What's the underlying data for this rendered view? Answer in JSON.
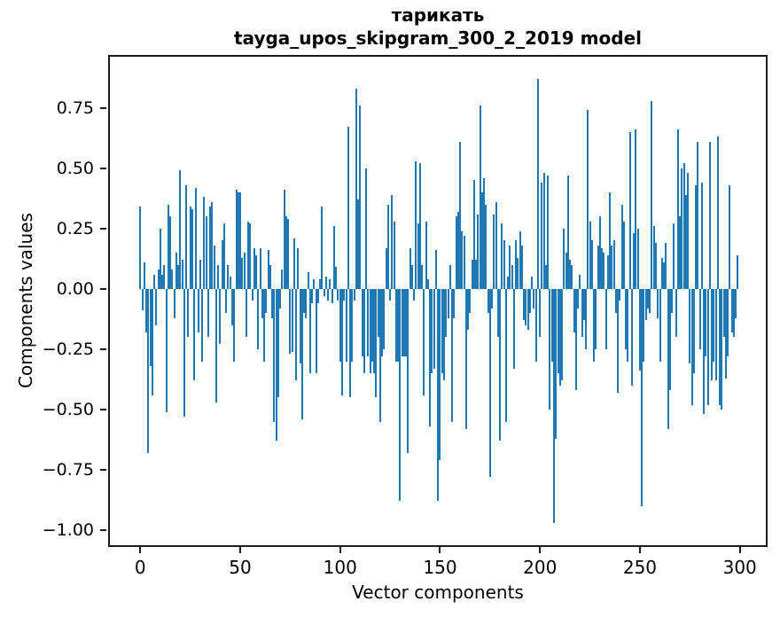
{
  "figure": {
    "title_line1": "тарикать",
    "title_line2": "tayga_upos_skipgram_300_2_2019 model"
  },
  "chart_data": {
    "type": "bar",
    "title": "тарикать",
    "subtitle": "tayga_upos_skipgram_300_2_2019 model",
    "xlabel": "Vector components",
    "ylabel": "Components values",
    "legend": "none",
    "grid": false,
    "bar_color": "#1f77b4",
    "spine_color": "#1c1c1c",
    "n_components": 300,
    "x_start": 0,
    "xlim": [
      -15.2,
      313.0
    ],
    "ylim": [
      -1.062,
      0.962
    ],
    "xticks": [
      {
        "label": "0",
        "value": 0
      },
      {
        "label": "50",
        "value": 50
      },
      {
        "label": "100",
        "value": 100
      },
      {
        "label": "150",
        "value": 150
      },
      {
        "label": "200",
        "value": 200
      },
      {
        "label": "250",
        "value": 250
      },
      {
        "label": "300",
        "value": 300
      }
    ],
    "yticks": [
      {
        "label": "0.75",
        "value": 0.75
      },
      {
        "label": "0.50",
        "value": 0.5
      },
      {
        "label": "0.25",
        "value": 0.25
      },
      {
        "label": "0.00",
        "value": 0.0
      },
      {
        "label": "−0.25",
        "value": -0.25
      },
      {
        "label": "−0.50",
        "value": -0.5
      },
      {
        "label": "−0.75",
        "value": -0.75
      },
      {
        "label": "−1.00",
        "value": -1.0
      }
    ],
    "values": [
      0.34,
      -0.09,
      0.11,
      -0.18,
      -0.68,
      -0.32,
      -0.44,
      0.06,
      -0.15,
      0.08,
      0.25,
      0.06,
      0.1,
      -0.51,
      0.35,
      0.3,
      0.08,
      -0.12,
      0.15,
      0.1,
      0.49,
      0.12,
      -0.53,
      0.43,
      -0.2,
      0.34,
      0.33,
      -0.38,
      0.42,
      -0.18,
      0.12,
      -0.3,
      0.38,
      0.3,
      -0.2,
      0.34,
      0.36,
      0.18,
      -0.47,
      0.1,
      -0.23,
      0.2,
      0.27,
      -0.1,
      0.1,
      0.05,
      -0.15,
      -0.3,
      0.41,
      0.4,
      0.4,
      0.13,
      0.15,
      -0.2,
      0.28,
      0.27,
      -0.05,
      0.17,
      0.14,
      -0.25,
      0.17,
      -0.12,
      -0.3,
      -0.1,
      0.16,
      0.1,
      -0.12,
      -0.55,
      -0.63,
      -0.45,
      -0.08,
      0.08,
      0.41,
      0.3,
      0.29,
      -0.27,
      -0.26,
      0.21,
      -0.38,
      0.17,
      -0.31,
      -0.54,
      -0.1,
      -0.12,
      0.07,
      -0.35,
      -0.06,
      0.04,
      -0.35,
      -0.06,
      0.04,
      0.34,
      -0.03,
      0.05,
      -0.05,
      0.04,
      -0.06,
      0.26,
      0.09,
      -0.05,
      -0.3,
      -0.44,
      -0.05,
      -0.3,
      0.67,
      -0.45,
      -0.3,
      -0.05,
      0.83,
      0.37,
      0.76,
      -0.28,
      -0.35,
      0.5,
      -0.28,
      -0.35,
      -0.3,
      -0.35,
      -0.45,
      -0.2,
      -0.55,
      -0.28,
      -0.25,
      0.17,
      0.35,
      -0.05,
      0.39,
      0.28,
      -0.3,
      -0.3,
      -0.88,
      -0.28,
      -0.28,
      -0.28,
      -0.68,
      0.17,
      0.1,
      -0.05,
      0.53,
      0.27,
      0.52,
      0.1,
      -0.44,
      0.28,
      0.04,
      -0.57,
      -0.35,
      -0.33,
      0.16,
      -0.88,
      -0.71,
      -0.35,
      -0.38,
      -0.2,
      -0.12,
      0.1,
      -0.55,
      -0.12,
      0.3,
      0.32,
      0.61,
      0.24,
      0.22,
      -0.58,
      -0.17,
      -0.1,
      0.12,
      0.45,
      0.12,
      0.31,
      0.76,
      0.4,
      0.46,
      0.35,
      -0.1,
      -0.78,
      -0.08,
      0.31,
      0.36,
      -0.2,
      -0.63,
      0.27,
      0.2,
      -0.55,
      0.05,
      0.18,
      0.1,
      -0.33,
      0.2,
      0.13,
      0.24,
      0.18,
      -0.13,
      -0.15,
      -0.17,
      -0.1,
      0.05,
      -0.08,
      -0.3,
      0.87,
      -0.2,
      0.44,
      0.48,
      0.1,
      0.47,
      -0.5,
      -0.3,
      -0.97,
      -0.62,
      -0.35,
      -0.4,
      -0.38,
      0.25,
      0.15,
      0.47,
      0.12,
      0.1,
      -0.18,
      -0.42,
      -0.08,
      0.06,
      -0.2,
      -0.13,
      -0.25,
      0.74,
      0.28,
      0.2,
      -0.3,
      -0.25,
      0.18,
      0.3,
      0.17,
      0.15,
      -0.25,
      0.14,
      0.4,
      0.18,
      0.2,
      -0.1,
      -0.43,
      -0.05,
      0.35,
      0.28,
      -0.25,
      -0.3,
      0.65,
      -0.4,
      0.23,
      0.66,
      0.25,
      -0.34,
      -0.9,
      -0.3,
      -0.13,
      -0.08,
      -0.1,
      0.78,
      0.26,
      0.19,
      -0.12,
      -0.3,
      0.13,
      0.11,
      0.19,
      -0.58,
      -0.42,
      -0.1,
      0.27,
      -0.2,
      0.66,
      0.3,
      0.5,
      0.52,
      0.39,
      0.48,
      -0.31,
      -0.48,
      -0.35,
      0.43,
      0.61,
      -0.25,
      0.44,
      -0.52,
      -0.28,
      -0.48,
      0.61,
      -0.38,
      -0.3,
      -0.38,
      0.63,
      -0.48,
      -0.5,
      -0.2,
      -0.37,
      -0.28,
      0.43,
      -0.18,
      -0.2,
      -0.12,
      0.14
    ]
  }
}
